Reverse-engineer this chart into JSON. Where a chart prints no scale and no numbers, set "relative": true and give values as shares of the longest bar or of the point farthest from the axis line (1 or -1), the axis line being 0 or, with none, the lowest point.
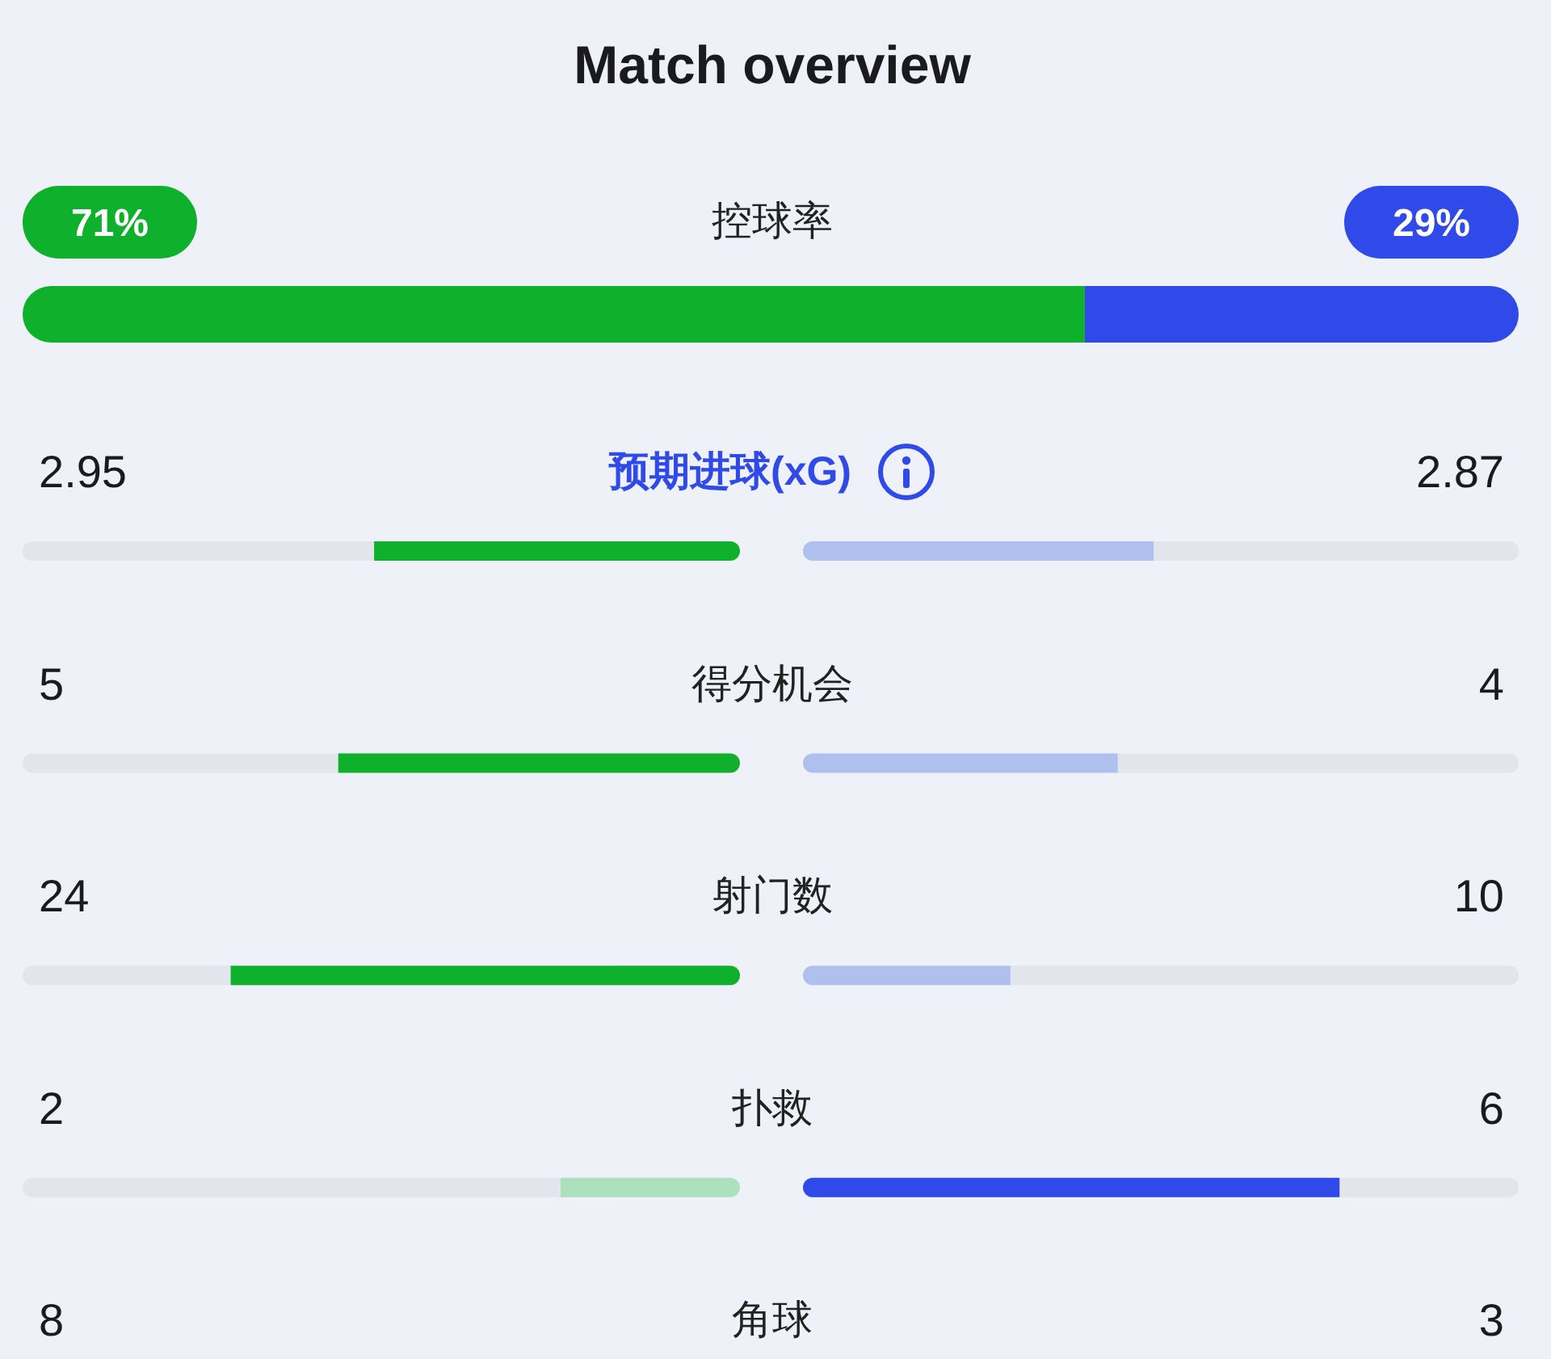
{
  "chart_data": [
    {
      "type": "other",
      "title": "Match overview",
      "categories": [
        "控球率"
      ],
      "series": [
        {
          "color": "#0fb02b",
          "values": [
            71
          ],
          "value_labels": [
            "71%"
          ]
        },
        {
          "color": "#2f4ae8",
          "values": [
            29
          ],
          "value_labels": [
            "29%"
          ]
        }
      ]
    },
    {
      "type": "bar",
      "orientation": "horizontal",
      "stacked": true,
      "relative": true,
      "categories": [
        null
      ],
      "series": [
        {
          "color": "#0fb02b",
          "values": [
            0.71
          ]
        },
        {
          "color": "#2f4ae8",
          "values": [
            0.29
          ]
        }
      ]
    },
    {
      "type": "other",
      "categories": [
        "预期进球(xG)"
      ],
      "series": [
        {
          "values": [
            2.95
          ]
        },
        {
          "values": [
            2.87
          ]
        }
      ],
      "data_labels": true
    },
    {
      "type": "bar",
      "orientation": "horizontal",
      "stacked": true,
      "relative": true,
      "categories": [
        null
      ],
      "series": [
        {
          "color": "#e2e6ec",
          "values": [
            0.49
          ]
        },
        {
          "color": "#0fb02b",
          "values": [
            0.51
          ]
        }
      ]
    },
    {
      "type": "bar",
      "orientation": "horizontal",
      "stacked": true,
      "relative": true,
      "categories": [
        null
      ],
      "series": [
        {
          "color": "#b0c0ee",
          "values": [
            0.49
          ]
        },
        {
          "color": "#e2e6ec",
          "values": [
            0.51
          ]
        }
      ]
    },
    {
      "type": "other",
      "categories": [
        "得分机会"
      ],
      "series": [
        {
          "values": [
            5
          ]
        },
        {
          "values": [
            4
          ]
        }
      ],
      "data_labels": true
    },
    {
      "type": "bar",
      "orientation": "horizontal",
      "stacked": true,
      "relative": true,
      "categories": [
        null
      ],
      "series": [
        {
          "color": "#e2e6ec",
          "values": [
            0.44
          ]
        },
        {
          "color": "#0fb02b",
          "values": [
            0.56
          ]
        }
      ]
    },
    {
      "type": "bar",
      "orientation": "horizontal",
      "stacked": true,
      "relative": true,
      "categories": [
        null
      ],
      "series": [
        {
          "color": "#b0c0ee",
          "values": [
            0.44
          ]
        },
        {
          "color": "#e2e6ec",
          "values": [
            0.56
          ]
        }
      ]
    },
    {
      "type": "other",
      "categories": [
        "射门数"
      ],
      "series": [
        {
          "values": [
            24
          ]
        },
        {
          "values": [
            10
          ]
        }
      ],
      "data_labels": true
    },
    {
      "type": "bar",
      "orientation": "horizontal",
      "stacked": true,
      "relative": true,
      "categories": [
        null
      ],
      "series": [
        {
          "color": "#e2e6ec",
          "values": [
            0.29
          ]
        },
        {
          "color": "#0fb02b",
          "values": [
            0.71
          ]
        }
      ]
    },
    {
      "type": "bar",
      "orientation": "horizontal",
      "stacked": true,
      "relative": true,
      "categories": [
        null
      ],
      "series": [
        {
          "color": "#b0c0ee",
          "values": [
            0.29
          ]
        },
        {
          "color": "#e2e6ec",
          "values": [
            0.71
          ]
        }
      ]
    },
    {
      "type": "other",
      "categories": [
        "扑救"
      ],
      "series": [
        {
          "values": [
            2
          ]
        },
        {
          "values": [
            6
          ]
        }
      ],
      "data_labels": true
    },
    {
      "type": "bar",
      "orientation": "horizontal",
      "stacked": true,
      "relative": true,
      "categories": [
        null
      ],
      "series": [
        {
          "color": "#e2e6ec",
          "values": [
            0.75
          ]
        },
        {
          "color": "#ade0bc",
          "values": [
            0.25
          ]
        }
      ]
    },
    {
      "type": "bar",
      "orientation": "horizontal",
      "stacked": true,
      "relative": true,
      "categories": [
        null
      ],
      "series": [
        {
          "color": "#2f4ae8",
          "values": [
            0.75
          ]
        },
        {
          "color": "#e2e6ec",
          "values": [
            0.25
          ]
        }
      ]
    },
    {
      "type": "other",
      "categories": [
        "角球"
      ],
      "series": [
        {
          "values": [
            8
          ]
        },
        {
          "values": [
            3
          ]
        }
      ],
      "data_labels": true
    }
  ]
}
